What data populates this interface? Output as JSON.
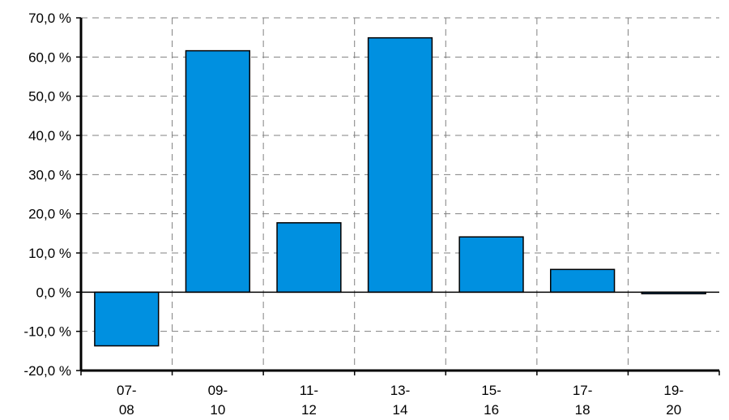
{
  "chart_data": {
    "type": "bar",
    "categories": [
      [
        "07-",
        "08"
      ],
      [
        "09-",
        "10"
      ],
      [
        "11-",
        "12"
      ],
      [
        "13-",
        "14"
      ],
      [
        "15-",
        "16"
      ],
      [
        "17-",
        "18"
      ],
      [
        "19-",
        "20"
      ]
    ],
    "values": [
      -13.7,
      61.6,
      17.7,
      64.9,
      14.1,
      5.8,
      -0.4
    ],
    "ylim": [
      -20,
      70
    ],
    "yticks": [
      70,
      60,
      50,
      40,
      30,
      20,
      10,
      0,
      -10,
      -20
    ],
    "ytick_labels": [
      "70,0 %",
      "60,0 %",
      "50,0 %",
      "40,0 %",
      "30,0 %",
      "20,0 %",
      "10,0 %",
      "0,0 %",
      "-10,0 %",
      "-20,0 %"
    ],
    "grid": true,
    "legend": "none",
    "bar_color": "#0090E0",
    "bar_edge_color": "#000000"
  }
}
